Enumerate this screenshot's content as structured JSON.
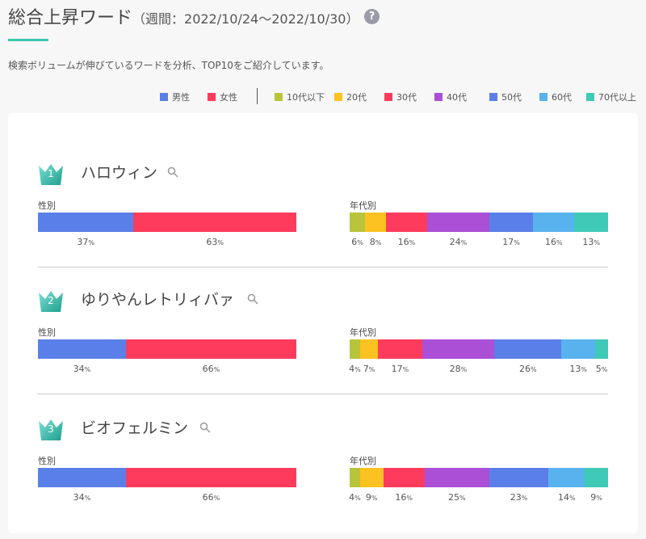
{
  "header": {
    "title": "総合上昇ワード",
    "period": "（週間：2022/10/24～2022/10/30）",
    "help_icon": "?",
    "description": "検索ボリュームが伸びているワードを分析、TOP10をご紹介しています。"
  },
  "legend": {
    "gender": [
      {
        "label": "男性",
        "color": "#5b7fe8"
      },
      {
        "label": "女性",
        "color": "#fe3b5c"
      }
    ],
    "age": [
      {
        "label": "10代以下",
        "color": "#b8c43a"
      },
      {
        "label": "20代",
        "color": "#fbc221"
      },
      {
        "label": "30代",
        "color": "#fe3b5c"
      },
      {
        "label": "40代",
        "color": "#aa4fd6"
      },
      {
        "label": "50代",
        "color": "#5b7fe8"
      },
      {
        "label": "60代",
        "color": "#58b2ee"
      },
      {
        "label": "70代以上",
        "color": "#3ecab6"
      }
    ]
  },
  "labels": {
    "gender": "性別",
    "age": "年代別",
    "percent_unit": "%"
  },
  "chart_data": [
    {
      "type": "bar",
      "rank": "1",
      "keyword": "ハロウィン",
      "gender": {
        "categories": [
          "男性",
          "女性"
        ],
        "values": [
          37,
          63
        ]
      },
      "age": {
        "categories": [
          "10代以下",
          "20代",
          "30代",
          "40代",
          "50代",
          "60代",
          "70代以上"
        ],
        "values": [
          6,
          8,
          16,
          24,
          17,
          16,
          13
        ]
      }
    },
    {
      "type": "bar",
      "rank": "2",
      "keyword": "ゆりやんレトリィバァ",
      "gender": {
        "categories": [
          "男性",
          "女性"
        ],
        "values": [
          34,
          66
        ]
      },
      "age": {
        "categories": [
          "10代以下",
          "20代",
          "30代",
          "40代",
          "50代",
          "60代",
          "70代以上"
        ],
        "values": [
          4,
          7,
          17,
          28,
          26,
          13,
          5
        ]
      }
    },
    {
      "type": "bar",
      "rank": "3",
      "keyword": "ビオフェルミン",
      "gender": {
        "categories": [
          "男性",
          "女性"
        ],
        "values": [
          34,
          66
        ]
      },
      "age": {
        "categories": [
          "10代以下",
          "20代",
          "30代",
          "40代",
          "50代",
          "60代",
          "70代以上"
        ],
        "values": [
          4,
          9,
          16,
          25,
          23,
          14,
          9
        ]
      }
    }
  ]
}
